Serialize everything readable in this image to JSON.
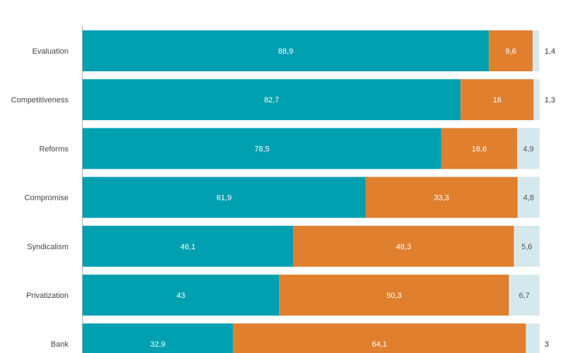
{
  "chart_data": {
    "type": "bar",
    "orientation": "horizontal",
    "stacked": true,
    "categories": [
      "Evaluation",
      "Competitiveness",
      "Reforms",
      "Compromise",
      "Syndicalism",
      "Privatization",
      "Bank"
    ],
    "series": [
      {
        "color": "#00a0b0",
        "values": [
          88.9,
          82.7,
          78.5,
          61.9,
          46.1,
          43,
          32.9
        ],
        "labels": [
          "88,9",
          "82,7",
          "78,5",
          "61,9",
          "46,1",
          "43",
          "32,9"
        ]
      },
      {
        "color": "#e07f2e",
        "values": [
          9.6,
          16,
          16.6,
          33.3,
          48.3,
          50.3,
          64.1
        ],
        "labels": [
          "9,6",
          "16",
          "16,6",
          "33,3",
          "48,3",
          "50,3",
          "64,1"
        ]
      },
      {
        "color": "#d5e8ee",
        "values": [
          1.4,
          1.3,
          4.9,
          4.8,
          5.6,
          6.7,
          3
        ],
        "labels": [
          "1,4",
          "1,3",
          "4,9",
          "4,8",
          "5,6",
          "6,7",
          "3"
        ]
      }
    ],
    "xlim": [
      0,
      100
    ],
    "grid": false,
    "legend": "none"
  }
}
